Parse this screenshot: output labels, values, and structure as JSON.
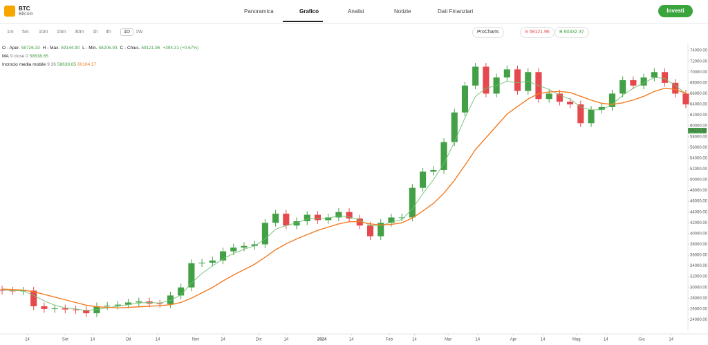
{
  "header": {
    "symbol": "BTC",
    "name": "Bitcoin",
    "tabs": [
      "Panoramica",
      "Grafico",
      "Analisi",
      "Notizie",
      "Dati Finanziari"
    ],
    "invest": "Investi"
  },
  "toolbar": {
    "timeframes": [
      "1m",
      "5m",
      "10m",
      "15m",
      "30m",
      "1h",
      "4h",
      "1D",
      "1W"
    ],
    "prochart": "ProCharts",
    "sell": "S 59121.96",
    "buy": "B 60332.37"
  },
  "legend": {
    "ohlc": [
      "O - Aper.",
      "58726.33",
      "H - Max.",
      "59144.90",
      "L - Min.",
      "58206.93",
      "C - Chius.",
      "59121.96",
      "+394.31 (+0.67%)"
    ],
    "ma": [
      "MA",
      "9 close 0",
      "58638.65"
    ],
    "cross": [
      "Incrocio media mobile",
      "9 26",
      "58638.65",
      "60104.17"
    ]
  },
  "chart_data": {
    "type": "candlestick",
    "x": [
      0,
      5,
      10,
      15,
      20,
      25,
      30,
      35,
      40,
      45,
      50,
      55,
      60,
      65,
      70,
      75,
      80,
      85,
      90,
      95,
      100,
      105,
      110,
      115,
      120,
      125,
      130,
      135,
      140,
      145,
      150,
      155,
      160,
      165,
      170,
      175,
      180,
      185,
      190,
      195,
      200,
      205,
      210,
      215,
      220,
      225,
      230,
      235,
      240,
      245,
      250,
      255,
      260,
      265,
      270,
      275,
      280,
      285,
      290,
      295,
      300,
      305,
      310,
      315,
      320,
      325
    ],
    "open": [
      29600,
      29400,
      29300,
      29400,
      26500,
      26000,
      26100,
      25900,
      25800,
      25200,
      26500,
      26600,
      26800,
      27200,
      27400,
      27000,
      26900,
      28500,
      30000,
      34500,
      34600,
      35000,
      36700,
      37400,
      37700,
      38000,
      42000,
      43700,
      41500,
      42300,
      43500,
      42500,
      43000,
      44000,
      42800,
      41500,
      39500,
      42000,
      43000,
      43000,
      48500,
      51500,
      51800,
      57000,
      62500,
      67500,
      71000,
      66000,
      69000,
      70500,
      66500,
      70000,
      65000,
      66000,
      64500,
      64000,
      60500,
      63000,
      63500,
      66000,
      68500,
      67500,
      69000,
      70000,
      68000,
      66000
    ],
    "high": [
      30300,
      30100,
      30100,
      30100,
      27200,
      26800,
      26800,
      26600,
      26500,
      27200,
      27300,
      27500,
      27900,
      28100,
      28100,
      27700,
      29200,
      30700,
      35200,
      35300,
      35700,
      37400,
      38100,
      38400,
      38700,
      42700,
      44400,
      44400,
      43000,
      44200,
      44200,
      43700,
      44700,
      44700,
      43500,
      42200,
      42700,
      43700,
      43700,
      49200,
      52200,
      52500,
      57700,
      63200,
      68200,
      71700,
      71700,
      69700,
      71200,
      71200,
      70700,
      70700,
      66700,
      66700,
      65200,
      64700,
      63700,
      64200,
      66700,
      69200,
      69200,
      69700,
      70700,
      70700,
      68700,
      66700
    ],
    "low": [
      28700,
      28600,
      28600,
      25800,
      25300,
      25300,
      25200,
      25100,
      24500,
      24500,
      25800,
      25900,
      26100,
      26500,
      26300,
      26200,
      26200,
      27800,
      29300,
      33800,
      33900,
      34300,
      36000,
      36700,
      37000,
      37300,
      41300,
      40800,
      40800,
      41600,
      41800,
      41800,
      42300,
      42100,
      40800,
      38800,
      38800,
      41300,
      42300,
      42300,
      47800,
      50800,
      51100,
      56300,
      61800,
      66800,
      65300,
      65300,
      68300,
      65800,
      65800,
      64300,
      64300,
      63800,
      63300,
      59800,
      59800,
      62300,
      62800,
      65300,
      66800,
      66800,
      68300,
      67300,
      65300,
      63300
    ],
    "close": [
      29400,
      29300,
      29400,
      26500,
      26000,
      26100,
      25900,
      25800,
      25200,
      26500,
      26600,
      26800,
      27200,
      27400,
      27000,
      26900,
      28500,
      30000,
      34500,
      34600,
      35000,
      36700,
      37400,
      37700,
      38000,
      42000,
      43700,
      41500,
      42300,
      43500,
      42500,
      43000,
      44000,
      42800,
      41500,
      39500,
      42000,
      43000,
      43000,
      48500,
      51500,
      51800,
      57000,
      62500,
      67500,
      71000,
      66000,
      69000,
      70500,
      66500,
      70000,
      65000,
      66000,
      64500,
      64000,
      60500,
      63000,
      63500,
      66000,
      68500,
      67500,
      69000,
      70000,
      68000,
      66000,
      64000
    ],
    "up_color": "#43a047",
    "down_color": "#e5484d",
    "series": [
      {
        "name": "MA",
        "color": "#6cc16e",
        "values": [
          29500,
          29400,
          29400,
          28500,
          27500,
          26700,
          26200,
          26000,
          25700,
          25900,
          26200,
          26500,
          26800,
          27100,
          27200,
          27100,
          27600,
          28600,
          30800,
          32600,
          34000,
          35300,
          36300,
          37100,
          37700,
          39000,
          40800,
          41500,
          42000,
          42700,
          42800,
          42900,
          43300,
          43100,
          42500,
          41500,
          41500,
          42100,
          42600,
          44600,
          47400,
          50000,
          53000,
          57000,
          61500,
          65500,
          67000,
          67500,
          68300,
          68000,
          68300,
          67500,
          66800,
          65700,
          65000,
          63500,
          63000,
          63000,
          64000,
          65700,
          67000,
          68000,
          69000,
          68800,
          67500,
          66000
        ]
      },
      {
        "name": "Incrocio media mobile",
        "color": "#f47b20",
        "values": [
          29700,
          29600,
          29500,
          29200,
          28700,
          28200,
          27700,
          27200,
          26700,
          26400,
          26300,
          26200,
          26300,
          26400,
          26500,
          26600,
          26800,
          27200,
          28000,
          29000,
          30000,
          31200,
          32300,
          33300,
          34300,
          35600,
          37000,
          38100,
          39000,
          39800,
          40600,
          41200,
          41800,
          42200,
          42200,
          41800,
          41600,
          41700,
          42000,
          42900,
          44200,
          45600,
          47500,
          49900,
          52700,
          55600,
          57800,
          60000,
          62200,
          63600,
          65000,
          66000,
          66300,
          66400,
          66200,
          65500,
          64800,
          64200,
          64000,
          64300,
          64800,
          65500,
          66400,
          67000,
          66800,
          66000
        ]
      }
    ],
    "last_price": 59121.96,
    "last_price_color": "#43a047",
    "xlim": [
      -1,
      326
    ],
    "xticks": [
      {
        "value": 12,
        "label": "14"
      },
      {
        "value": 30,
        "label": "Set"
      },
      {
        "value": 43,
        "label": "14"
      },
      {
        "value": 60,
        "label": "Ott"
      },
      {
        "value": 74,
        "label": "14"
      },
      {
        "value": 92,
        "label": "Nov"
      },
      {
        "value": 105,
        "label": "14"
      },
      {
        "value": 122,
        "label": "Dic"
      },
      {
        "value": 135,
        "label": "14"
      },
      {
        "value": 152,
        "label": "2024"
      },
      {
        "value": 166,
        "label": "14"
      },
      {
        "value": 184,
        "label": "Feb"
      },
      {
        "value": 196,
        "label": "14"
      },
      {
        "value": 212,
        "label": "Mar"
      },
      {
        "value": 226,
        "label": "14"
      },
      {
        "value": 243,
        "label": "Apr"
      },
      {
        "value": 257,
        "label": "14"
      },
      {
        "value": 273,
        "label": "Mag"
      },
      {
        "value": 287,
        "label": "14"
      },
      {
        "value": 304,
        "label": "Giu"
      },
      {
        "value": 318,
        "label": "14"
      }
    ],
    "ylim": [
      22000,
      75300
    ],
    "yticks": [
      {
        "value": 24000,
        "label": "24000.00"
      },
      {
        "value": 26000,
        "label": "26000.00"
      },
      {
        "value": 28000,
        "label": "28000.00"
      },
      {
        "value": 30000,
        "label": "30000.00"
      },
      {
        "value": 32000,
        "label": "32000.00"
      },
      {
        "value": 34000,
        "label": "34000.00"
      },
      {
        "value": 36000,
        "label": "36000.00"
      },
      {
        "value": 38000,
        "label": "38000.00"
      },
      {
        "value": 40000,
        "label": "40000.00"
      },
      {
        "value": 42000,
        "label": "42000.00"
      },
      {
        "value": 44000,
        "label": "44000.00"
      },
      {
        "value": 46000,
        "label": "46000.00"
      },
      {
        "value": 48000,
        "label": "48000.00"
      },
      {
        "value": 50000,
        "label": "50000.00"
      },
      {
        "value": 52000,
        "label": "52000.00"
      },
      {
        "value": 54000,
        "label": "54000.00"
      },
      {
        "value": 56000,
        "label": "56000.00"
      },
      {
        "value": 58000,
        "label": "58000.00"
      },
      {
        "value": 60000,
        "label": "60000.00"
      },
      {
        "value": 62000,
        "label": "62000.00"
      },
      {
        "value": 64000,
        "label": "64000.00"
      },
      {
        "value": 66000,
        "label": "66000.00"
      },
      {
        "value": 68000,
        "label": "68000.00"
      },
      {
        "value": 70000,
        "label": "70000.00"
      },
      {
        "value": 72000,
        "label": "72000.00"
      },
      {
        "value": 74000,
        "label": "74000.00"
      }
    ]
  }
}
